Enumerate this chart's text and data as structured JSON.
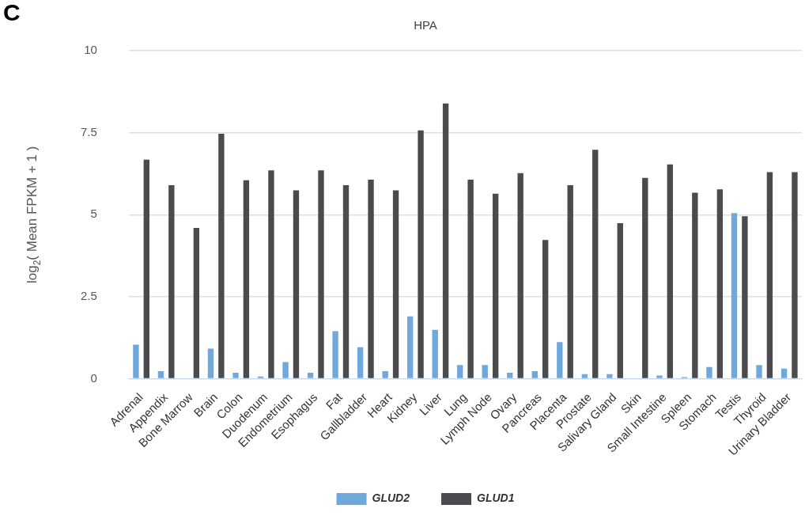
{
  "chart_data": {
    "type": "bar",
    "title": "HPA",
    "ylabel": "log$_{2}$( Mean FPKM + 1 )",
    "annotations": [
      "C"
    ],
    "categories": [
      "Adrenal",
      "Appendix",
      "Bone Marrow",
      "Brain",
      "Colon",
      "Duodenum",
      "Endometrium",
      "Esophagus",
      "Fat",
      "Gallbladder",
      "Heart",
      "Kidney",
      "Liver",
      "Lung",
      "Lymph Node",
      "Ovary",
      "Pancreas",
      "Placenta",
      "Prostate",
      "Salivary Gland",
      "Skin",
      "Small Intestine",
      "Spleen",
      "Stomach",
      "Testis",
      "Thyroid",
      "Urinary Bladder"
    ],
    "series": [
      {
        "name": "GLUD2",
        "color": "#6fa8dc",
        "values": [
          1.04,
          0.23,
          0,
          0.92,
          0.18,
          0.07,
          0.51,
          0.18,
          1.45,
          0.96,
          0.23,
          1.9,
          1.49,
          0.42,
          0.42,
          0.18,
          0.23,
          1.12,
          0.14,
          0.14,
          null,
          0.1,
          0.05,
          0.36,
          5.05,
          0.42,
          0.31
        ]
      },
      {
        "name": "GLUD1",
        "color": "#4a4a4f",
        "values": [
          6.68,
          5.9,
          4.6,
          7.47,
          6.05,
          6.35,
          5.74,
          6.35,
          5.9,
          6.07,
          5.74,
          7.57,
          8.39,
          6.07,
          5.64,
          6.27,
          4.23,
          5.9,
          6.98,
          4.74,
          6.12,
          6.53,
          5.67,
          5.77,
          4.95,
          6.3,
          6.3
        ]
      }
    ],
    "ylim": [
      0,
      10
    ],
    "yticks": [
      0,
      2.5,
      5,
      7.5,
      10
    ],
    "grid": "y",
    "legend": "bottom"
  }
}
